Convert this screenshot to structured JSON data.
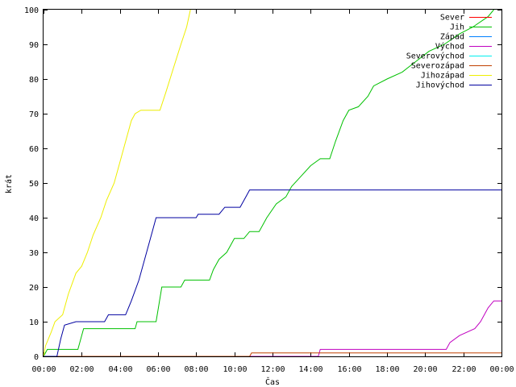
{
  "chart_data": {
    "type": "line",
    "xlabel": "Čas",
    "ylabel": "krát",
    "xlim": [
      0,
      24
    ],
    "ylim": [
      0,
      100
    ],
    "x_ticks": [
      {
        "value": 0,
        "label": "00:00"
      },
      {
        "value": 2,
        "label": "02:00"
      },
      {
        "value": 4,
        "label": "04:00"
      },
      {
        "value": 6,
        "label": "06:00"
      },
      {
        "value": 8,
        "label": "08:00"
      },
      {
        "value": 10,
        "label": "10:00"
      },
      {
        "value": 12,
        "label": "12:00"
      },
      {
        "value": 14,
        "label": "14:00"
      },
      {
        "value": 16,
        "label": "16:00"
      },
      {
        "value": 18,
        "label": "18:00"
      },
      {
        "value": 20,
        "label": "20:00"
      },
      {
        "value": 22,
        "label": "22:00"
      },
      {
        "value": 24,
        "label": "00:00"
      }
    ],
    "y_ticks": [
      0,
      10,
      20,
      30,
      40,
      50,
      60,
      70,
      80,
      90,
      100
    ],
    "grid": false,
    "legend_position": "top-right",
    "series": [
      {
        "name": "Sever",
        "color": "#ff0000",
        "points": []
      },
      {
        "name": "Jih",
        "color": "#00c000",
        "points": [
          [
            0,
            0
          ],
          [
            0.2,
            2
          ],
          [
            1.8,
            2
          ],
          [
            2.1,
            8
          ],
          [
            4.8,
            8
          ],
          [
            4.9,
            10
          ],
          [
            5.9,
            10
          ],
          [
            6.2,
            20
          ],
          [
            7.2,
            20
          ],
          [
            7.4,
            22
          ],
          [
            8.7,
            22
          ],
          [
            8.9,
            25
          ],
          [
            9.2,
            28
          ],
          [
            9.6,
            30
          ],
          [
            10.0,
            34
          ],
          [
            10.5,
            34
          ],
          [
            10.8,
            36
          ],
          [
            11.3,
            36
          ],
          [
            11.7,
            40
          ],
          [
            12.2,
            44
          ],
          [
            12.7,
            46
          ],
          [
            13.0,
            49
          ],
          [
            13.5,
            52
          ],
          [
            14.0,
            55
          ],
          [
            14.5,
            57
          ],
          [
            15.0,
            57
          ],
          [
            15.3,
            62
          ],
          [
            15.7,
            68
          ],
          [
            16.0,
            71
          ],
          [
            16.5,
            72
          ],
          [
            17.0,
            75
          ],
          [
            17.3,
            78
          ],
          [
            18.0,
            80
          ],
          [
            18.8,
            82
          ],
          [
            19.5,
            85
          ],
          [
            20.2,
            88
          ],
          [
            21.0,
            90
          ],
          [
            21.8,
            93
          ],
          [
            22.5,
            95
          ],
          [
            23.3,
            98
          ],
          [
            23.6,
            100
          ]
        ]
      },
      {
        "name": "Západ",
        "color": "#0080ff",
        "points": []
      },
      {
        "name": "Východ",
        "color": "#c000c0",
        "points": [
          [
            0,
            0
          ],
          [
            14.4,
            0
          ],
          [
            14.5,
            2
          ],
          [
            21.1,
            2
          ],
          [
            21.3,
            4
          ],
          [
            21.8,
            6
          ],
          [
            22.6,
            8
          ],
          [
            22.9,
            10
          ],
          [
            23.1,
            12
          ],
          [
            23.3,
            14
          ],
          [
            23.6,
            16
          ],
          [
            24,
            16
          ]
        ]
      },
      {
        "name": "Severovýchod",
        "color": "#00eeee",
        "points": []
      },
      {
        "name": "Severozápad",
        "color": "#c04000",
        "points": [
          [
            0,
            0
          ],
          [
            10.8,
            0
          ],
          [
            10.9,
            1
          ],
          [
            24,
            1
          ]
        ]
      },
      {
        "name": "Jihozápad",
        "color": "#eeee00",
        "points": [
          [
            0,
            0
          ],
          [
            0.1,
            3
          ],
          [
            0.4,
            7
          ],
          [
            0.6,
            10
          ],
          [
            1.0,
            12
          ],
          [
            1.3,
            18
          ],
          [
            1.7,
            24
          ],
          [
            2.0,
            26
          ],
          [
            2.3,
            30
          ],
          [
            2.6,
            35
          ],
          [
            3.0,
            40
          ],
          [
            3.3,
            45
          ],
          [
            3.7,
            50
          ],
          [
            4.0,
            56
          ],
          [
            4.3,
            62
          ],
          [
            4.6,
            68
          ],
          [
            4.8,
            70
          ],
          [
            5.1,
            71
          ],
          [
            6.1,
            71
          ],
          [
            6.4,
            76
          ],
          [
            6.8,
            83
          ],
          [
            7.2,
            90
          ],
          [
            7.5,
            95
          ],
          [
            7.7,
            100
          ]
        ]
      },
      {
        "name": "Jihovýchod",
        "color": "#0000a0",
        "points": [
          [
            0,
            0
          ],
          [
            0.7,
            0
          ],
          [
            0.9,
            5
          ],
          [
            1.1,
            9
          ],
          [
            1.7,
            10
          ],
          [
            3.2,
            10
          ],
          [
            3.4,
            12
          ],
          [
            4.3,
            12
          ],
          [
            4.6,
            16
          ],
          [
            5.0,
            22
          ],
          [
            5.4,
            30
          ],
          [
            5.7,
            36
          ],
          [
            5.9,
            40
          ],
          [
            8.0,
            40
          ],
          [
            8.1,
            41
          ],
          [
            9.2,
            41
          ],
          [
            9.5,
            43
          ],
          [
            10.3,
            43
          ],
          [
            10.6,
            46
          ],
          [
            10.8,
            48
          ],
          [
            24,
            48
          ]
        ]
      }
    ]
  }
}
